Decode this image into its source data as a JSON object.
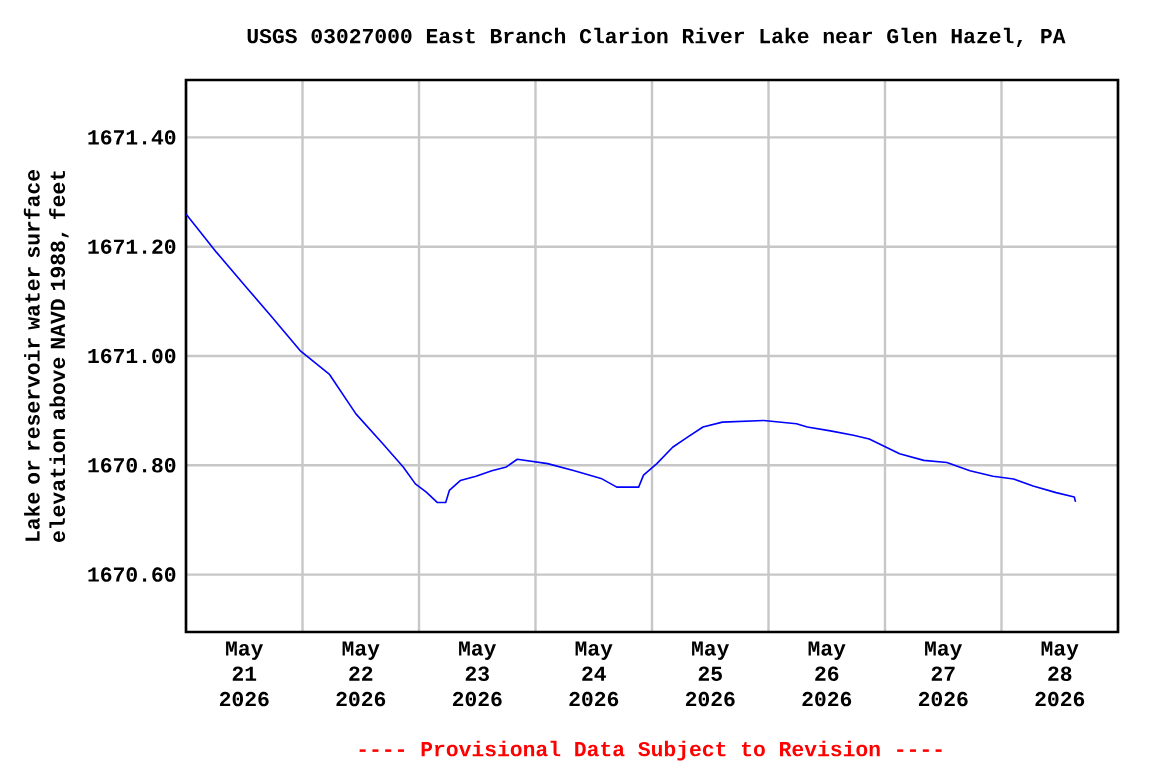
{
  "chart_data": {
    "type": "line",
    "title": "USGS 03027000 East Branch Clarion River Lake near Glen Hazel, PA",
    "ylabel": "Lake or reservoir water surface elevation above NAVD 1988, feet",
    "annotations": [
      "---- Provisional Data Subject to Revision ----"
    ],
    "x": [
      "2026-05-21T00:00",
      "2026-05-21T06:15",
      "2026-05-21T12:30",
      "2026-05-21T17:15",
      "2026-05-21T23:30",
      "2026-05-22T05:30",
      "2026-05-22T11:00",
      "2026-05-22T16:30",
      "2026-05-22T20:45",
      "2026-05-22T23:15",
      "2026-05-23T01:30",
      "2026-05-23T03:45",
      "2026-05-23T05:30",
      "2026-05-23T06:15",
      "2026-05-23T08:30",
      "2026-05-23T11:45",
      "2026-05-23T15:00",
      "2026-05-23T18:00",
      "2026-05-23T20:15",
      "2026-05-24T02:30",
      "2026-05-24T08:00",
      "2026-05-24T13:30",
      "2026-05-24T16:45",
      "2026-05-24T21:15",
      "2026-05-24T22:15",
      "2026-05-25T01:00",
      "2026-05-25T04:15",
      "2026-05-25T07:15",
      "2026-05-25T10:30",
      "2026-05-25T14:30",
      "2026-05-25T23:00",
      "2026-05-26T05:45",
      "2026-05-26T08:00",
      "2026-05-26T12:45",
      "2026-05-26T17:30",
      "2026-05-26T20:45",
      "2026-05-27T00:15",
      "2026-05-27T03:00",
      "2026-05-27T08:00",
      "2026-05-27T12:45",
      "2026-05-27T17:30",
      "2026-05-27T22:15",
      "2026-05-28T02:30",
      "2026-05-28T06:30",
      "2026-05-28T11:15",
      "2026-05-28T15:00",
      "2026-05-28T15:15"
    ],
    "series": [
      {
        "color": "#0000ff",
        "values": [
          1671.26,
          1671.19,
          1671.125,
          1671.076,
          1671.01,
          1670.967,
          1670.894,
          1670.84,
          1670.797,
          1670.766,
          1670.751,
          1670.732,
          1670.732,
          1670.754,
          1670.772,
          1670.78,
          1670.79,
          1670.797,
          1670.811,
          1670.803,
          1670.79,
          1670.776,
          1670.76,
          1670.76,
          1670.782,
          1670.803,
          1670.833,
          1670.851,
          1670.87,
          1670.879,
          1670.882,
          1670.876,
          1670.87,
          1670.863,
          1670.855,
          1670.848,
          1670.833,
          1670.821,
          1670.809,
          1670.805,
          1670.79,
          1670.78,
          1670.775,
          1670.762,
          1670.75,
          1670.742,
          1670.733
        ]
      }
    ],
    "xlim": [
      "2026-05-21T00:00",
      "2026-05-29T00:00"
    ],
    "xticks": [
      {
        "value": "2026-05-22T00:00",
        "label": null
      },
      {
        "value": "2026-05-23T00:00",
        "label": null
      },
      {
        "value": "2026-05-24T00:00",
        "label": null
      },
      {
        "value": "2026-05-25T00:00",
        "label": null
      },
      {
        "value": "2026-05-26T00:00",
        "label": null
      },
      {
        "value": "2026-05-27T00:00",
        "label": null
      },
      {
        "value": "2026-05-28T00:00",
        "label": null
      },
      {
        "value": "2026-05-21T12:00",
        "label": "May 21 2026"
      },
      {
        "value": "2026-05-22T12:00",
        "label": "May 22 2026"
      },
      {
        "value": "2026-05-23T12:00",
        "label": "May 23 2026"
      },
      {
        "value": "2026-05-24T12:00",
        "label": "May 24 2026"
      },
      {
        "value": "2026-05-25T12:00",
        "label": "May 25 2026"
      },
      {
        "value": "2026-05-26T12:00",
        "label": "May 26 2026"
      },
      {
        "value": "2026-05-27T12:00",
        "label": "May 27 2026"
      },
      {
        "value": "2026-05-28T12:00",
        "label": "May 28 2026"
      }
    ],
    "ylim": [
      1670.495,
      1671.505
    ],
    "yticks": [
      {
        "value": 1670.6,
        "label": "1670.60"
      },
      {
        "value": 1670.8,
        "label": "1670.80"
      },
      {
        "value": 1671.0,
        "label": "1671.00"
      },
      {
        "value": 1671.2,
        "label": "1671.20"
      },
      {
        "value": 1671.4,
        "label": "1671.40"
      }
    ],
    "grid": true
  }
}
